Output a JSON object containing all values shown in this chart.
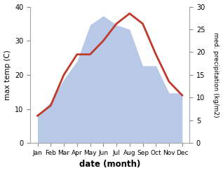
{
  "months": [
    "Jan",
    "Feb",
    "Mar",
    "Apr",
    "May",
    "Jun",
    "Jul",
    "Aug",
    "Sep",
    "Oct",
    "Nov",
    "Dec"
  ],
  "temp": [
    8,
    11,
    20,
    26,
    26,
    30,
    35,
    38,
    35,
    26,
    18,
    14
  ],
  "precip": [
    6,
    9,
    14,
    18,
    26,
    28,
    26,
    25,
    17,
    17,
    11,
    11
  ],
  "temp_color": "#c0392b",
  "precip_color": "#b8c9e8",
  "ylabel_left": "max temp (C)",
  "ylabel_right": "med. precipitation (kg/m2)",
  "xlabel": "date (month)",
  "ylim_left": [
    0,
    40
  ],
  "ylim_right": [
    0,
    30
  ],
  "yticks_left": [
    0,
    10,
    20,
    30,
    40
  ],
  "yticks_right": [
    0,
    5,
    10,
    15,
    20,
    25,
    30
  ],
  "bg_color": "#ffffff"
}
